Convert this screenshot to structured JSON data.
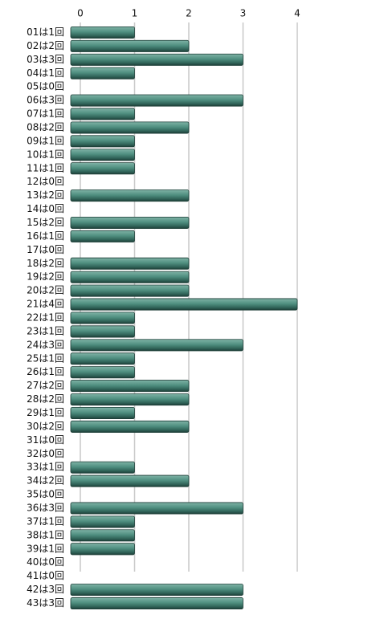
{
  "chart_data": {
    "type": "hbar",
    "categories": [
      "01は1回",
      "02は2回",
      "03は3回",
      "04は1回",
      "05は0回",
      "06は3回",
      "07は1回",
      "08は2回",
      "09は1回",
      "10は1回",
      "11は1回",
      "12は0回",
      "13は2回",
      "14は0回",
      "15は2回",
      "16は1回",
      "17は0回",
      "18は2回",
      "19は2回",
      "20は2回",
      "21は4回",
      "22は1回",
      "23は1回",
      "24は3回",
      "25は1回",
      "26は1回",
      "27は2回",
      "28は2回",
      "29は1回",
      "30は2回",
      "31は0回",
      "32は0回",
      "33は1回",
      "34は2回",
      "35は0回",
      "36は3回",
      "37は1回",
      "38は1回",
      "39は1回",
      "40は0回",
      "41は0回",
      "42は3回",
      "43は3回"
    ],
    "values": [
      1,
      2,
      3,
      1,
      0,
      3,
      1,
      2,
      1,
      1,
      1,
      0,
      2,
      0,
      2,
      1,
      0,
      2,
      2,
      2,
      4,
      1,
      1,
      3,
      1,
      1,
      2,
      2,
      1,
      2,
      0,
      0,
      1,
      2,
      0,
      3,
      1,
      1,
      1,
      0,
      0,
      3,
      3
    ],
    "color": "#4f8f80",
    "xlim": [
      0,
      4
    ],
    "xticks": [
      0,
      1,
      2,
      3,
      4
    ],
    "grid": true
  }
}
